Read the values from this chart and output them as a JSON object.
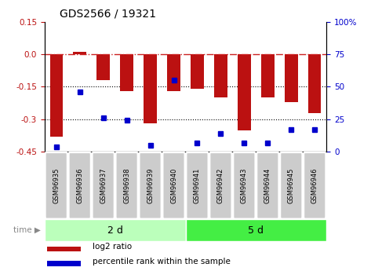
{
  "title": "GDS2566 / 19321",
  "samples": [
    "GSM96935",
    "GSM96936",
    "GSM96937",
    "GSM96938",
    "GSM96939",
    "GSM96940",
    "GSM96941",
    "GSM96942",
    "GSM96943",
    "GSM96944",
    "GSM96945",
    "GSM96946"
  ],
  "log2_ratio": [
    -0.38,
    0.01,
    -0.12,
    -0.17,
    -0.32,
    -0.17,
    -0.16,
    -0.2,
    -0.35,
    -0.2,
    -0.22,
    -0.27
  ],
  "percentile_rank": [
    4,
    46,
    26,
    24,
    5,
    55,
    7,
    14,
    7,
    7,
    17,
    17
  ],
  "groups": [
    {
      "label": "2 d",
      "start": 0,
      "end": 5,
      "color": "#bbffbb"
    },
    {
      "label": "5 d",
      "start": 6,
      "end": 11,
      "color": "#44ee44"
    }
  ],
  "bar_color": "#bb1111",
  "dot_color": "#0000cc",
  "ylim_left": [
    -0.45,
    0.15
  ],
  "ylim_right": [
    0,
    100
  ],
  "yticks_left": [
    0.15,
    0.0,
    -0.15,
    -0.3,
    -0.45
  ],
  "yticks_right": [
    100,
    75,
    50,
    25,
    0
  ],
  "bar_width": 0.55,
  "tick_label_bg": "#cccccc",
  "hline0_color": "#cc2222",
  "hline0_ls": "-.",
  "hline_color": "black",
  "hline_ls": ":"
}
